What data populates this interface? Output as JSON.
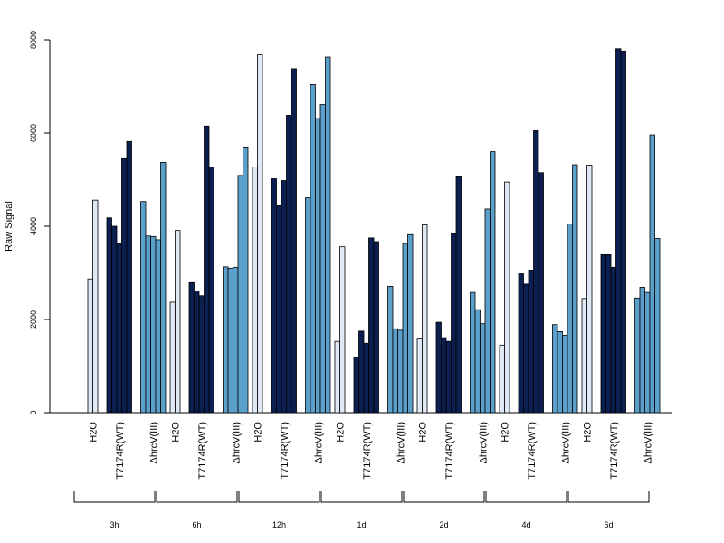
{
  "chart_data": {
    "type": "bar",
    "title": "",
    "xlabel": "",
    "ylabel": "Raw Signal",
    "ylim": [
      0,
      8000
    ],
    "yticks": [
      0,
      2000,
      4000,
      6000,
      8000
    ],
    "grid": false,
    "legend": "none",
    "group_labels": [
      "H2O",
      "T7174R(WT)",
      "ΔhrcV(III)"
    ],
    "group_colors": [
      "#dfe9f5",
      "#0b1f50",
      "#5b9fcb"
    ],
    "time_points": [
      {
        "label": "3h",
        "groups": [
          [
            2870,
            4560
          ],
          [
            4180,
            4000,
            3630,
            5450,
            5820
          ],
          [
            4530,
            3790,
            3780,
            3710,
            5370
          ]
        ]
      },
      {
        "label": "6h",
        "groups": [
          [
            2370,
            3910
          ],
          [
            2790,
            2610,
            2510,
            6150,
            5270
          ],
          [
            3130,
            3100,
            3120,
            5090,
            5700
          ]
        ]
      },
      {
        "label": "12h",
        "groups": [
          [
            5270,
            7680
          ],
          [
            5020,
            4440,
            4980,
            6380,
            7380
          ],
          [
            4610,
            7040,
            6310,
            6610,
            7630
          ]
        ]
      },
      {
        "label": "1d",
        "groups": [
          [
            1530,
            3560
          ],
          [
            1190,
            1750,
            1490,
            3750,
            3670
          ],
          [
            2710,
            1800,
            1770,
            3630,
            3820
          ]
        ]
      },
      {
        "label": "2d",
        "groups": [
          [
            1580,
            4030
          ],
          [
            1940,
            1610,
            1530,
            3840,
            5060
          ],
          [
            2580,
            2210,
            1910,
            4370,
            5600
          ]
        ]
      },
      {
        "label": "4d",
        "groups": [
          [
            1450,
            4950
          ],
          [
            2980,
            2760,
            3060,
            6050,
            5150
          ],
          [
            1890,
            1740,
            1660,
            4050,
            5320
          ]
        ]
      },
      {
        "label": "6d",
        "groups": [
          [
            2450,
            5310
          ],
          [
            3390,
            3390,
            3120,
            7810,
            7760
          ],
          [
            2460,
            2690,
            2580,
            5960,
            3740
          ]
        ]
      }
    ]
  }
}
